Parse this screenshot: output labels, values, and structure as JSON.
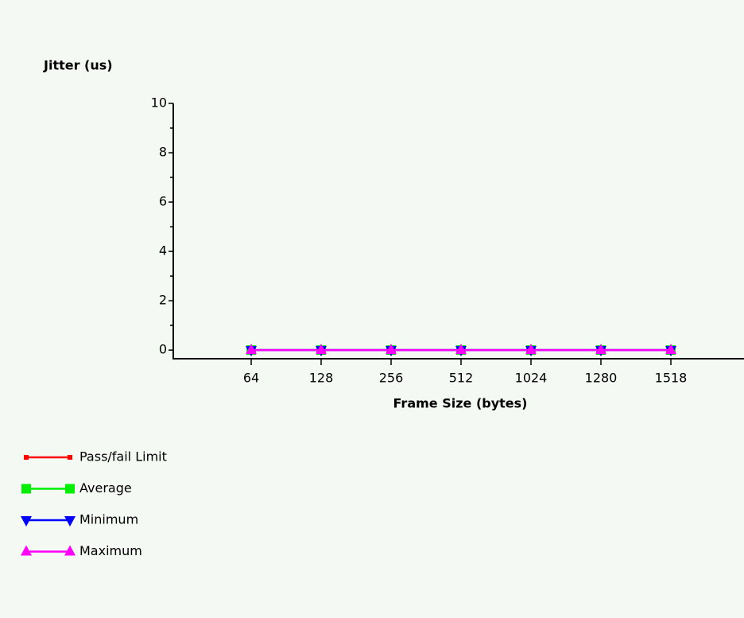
{
  "chart_data": {
    "type": "line",
    "title": "Jitter (us)",
    "x_label": "Frame Size (bytes)",
    "categories": [
      "64",
      "128",
      "256",
      "512",
      "1024",
      "1280",
      "1518"
    ],
    "series": [
      {
        "name": "Pass/fail Limit",
        "color": "#ff0000",
        "marker": "square-small",
        "values": [
          null,
          null,
          null,
          null,
          null,
          null,
          null
        ]
      },
      {
        "name": "Average",
        "color": "#00ee00",
        "marker": "square",
        "values": [
          0,
          0,
          0,
          0,
          0,
          0,
          0
        ]
      },
      {
        "name": "Minimum",
        "color": "#0000ff",
        "marker": "triangle-down",
        "values": [
          0,
          0,
          0,
          0,
          0,
          0,
          0
        ]
      },
      {
        "name": "Maximum",
        "color": "#ff00ff",
        "marker": "triangle-up",
        "values": [
          0,
          0,
          0,
          0,
          0,
          0,
          0
        ]
      }
    ],
    "ylim": [
      -0.35,
      10
    ],
    "yticks": [
      0,
      2,
      4,
      6,
      8,
      10
    ],
    "legend": "bottom-left"
  }
}
